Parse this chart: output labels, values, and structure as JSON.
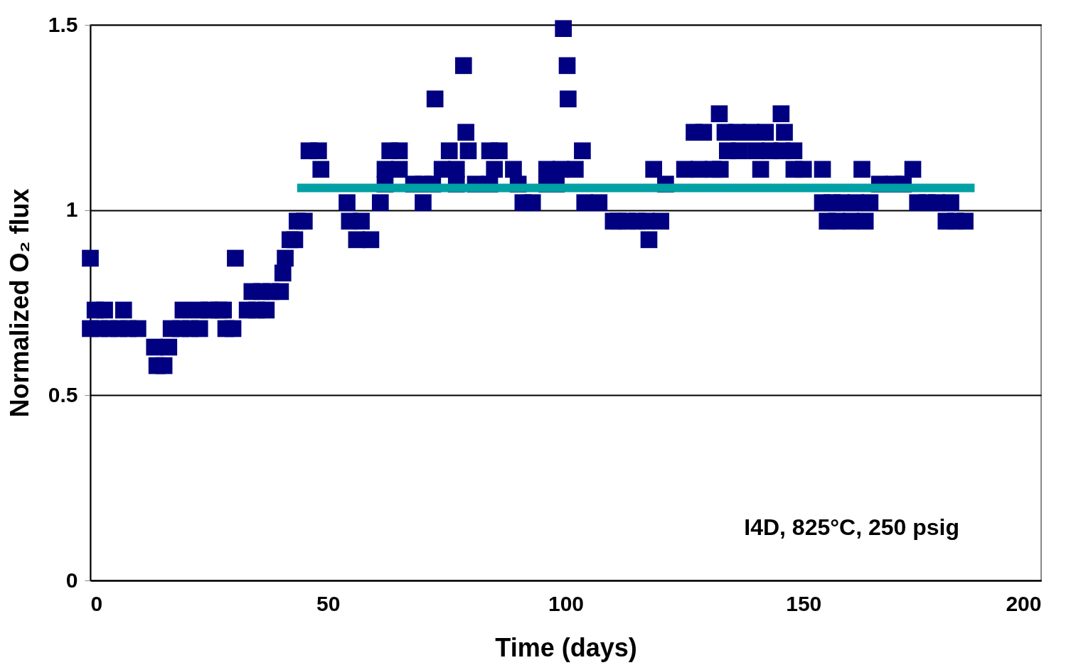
{
  "chart_data": {
    "type": "scatter",
    "xlabel": "Time (days)",
    "ylabel": "Normalized O₂ flux",
    "annotations": [
      "I4D, 825°C, 250 psig"
    ],
    "xlim": [
      0,
      200
    ],
    "xticks": [
      0,
      50,
      100,
      150,
      200
    ],
    "ylim": [
      0,
      1.5
    ],
    "yticks": [
      0,
      0.5,
      1,
      1.5
    ],
    "grid": "y",
    "marker": "square",
    "series": [
      {
        "color": "#000080",
        "x": [
          0,
          0,
          1,
          2,
          3,
          4,
          6,
          7,
          8,
          10,
          13.5,
          14,
          15.5,
          16.5,
          17,
          19,
          19.5,
          21,
          23,
          23,
          25,
          27,
          28,
          28.5,
          30,
          30.5,
          33,
          34,
          35,
          36,
          37,
          38,
          40,
          40.5,
          41,
          42,
          43,
          43.5,
          44.5,
          45,
          46,
          48,
          48.5,
          54,
          54.5,
          56,
          57,
          59,
          61,
          62,
          62,
          63,
          65,
          65,
          68,
          70,
          70,
          72,
          72.5,
          74,
          75.5,
          77,
          77,
          78.5,
          79,
          79.5,
          81,
          84,
          84,
          85,
          86,
          89,
          90,
          91,
          93,
          96,
          96,
          98,
          99,
          99.5,
          100.3,
          100.5,
          102,
          103.5,
          104,
          107,
          110,
          111,
          113,
          115,
          117,
          117.5,
          118.5,
          120,
          121,
          125,
          127,
          128,
          129,
          131,
          132.3,
          132.5,
          133.5,
          134,
          136,
          136.5,
          139,
          140,
          141,
          142,
          143,
          145.3,
          145.5,
          146,
          148,
          148,
          150,
          154,
          154,
          155,
          156,
          157,
          158,
          160,
          161,
          162.3,
          163,
          164,
          166,
          169,
          171,
          173,
          174,
          176,
          178,
          180,
          181,
          182,
          184
        ],
        "values": [
          0.87,
          0.68,
          0.73,
          0.68,
          0.73,
          0.68,
          0.68,
          0.73,
          0.68,
          0.68,
          0.63,
          0.58,
          0.58,
          0.63,
          0.68,
          0.68,
          0.73,
          0.68,
          0.68,
          0.73,
          0.73,
          0.73,
          0.73,
          0.68,
          0.68,
          0.87,
          0.73,
          0.78,
          0.73,
          0.78,
          0.73,
          0.78,
          0.78,
          0.83,
          0.87,
          0.92,
          0.92,
          0.97,
          null,
          0.97,
          1.16,
          1.16,
          1.11,
          1.02,
          0.97,
          0.92,
          0.97,
          0.92,
          1.02,
          1.07,
          1.11,
          1.16,
          1.16,
          1.11,
          1.07,
          1.02,
          1.07,
          1.07,
          1.3,
          1.11,
          1.16,
          1.11,
          1.07,
          1.39,
          1.21,
          1.16,
          1.07,
          1.16,
          1.07,
          1.11,
          1.16,
          1.11,
          1.07,
          1.02,
          1.02,
          1.11,
          1.07,
          1.07,
          1.11,
          1.49,
          1.39,
          1.3,
          1.11,
          1.16,
          1.02,
          1.02,
          0.97,
          0.97,
          0.97,
          0.97,
          0.97,
          0.92,
          1.11,
          0.97,
          1.07,
          1.11,
          1.21,
          1.11,
          1.21,
          1.11,
          1.26,
          1.11,
          1.21,
          1.16,
          1.21,
          1.16,
          1.21,
          1.16,
          1.11,
          1.21,
          1.16,
          1.26,
          1.16,
          1.21,
          1.16,
          1.11,
          1.11,
          1.11,
          1.02,
          0.97,
          1.02,
          0.97,
          1.02,
          0.97,
          1.02,
          1.11,
          0.97,
          1.02,
          1.07,
          1.07,
          1.07,
          1.11,
          1.02,
          1.02,
          1.02,
          0.97,
          1.02,
          0.97,
          0.97
        ]
      },
      {
        "type": "line",
        "color": "#00a0a4",
        "marker": "none",
        "x": [
          43.5,
          186
        ],
        "values": [
          1.06,
          1.06
        ]
      }
    ]
  }
}
